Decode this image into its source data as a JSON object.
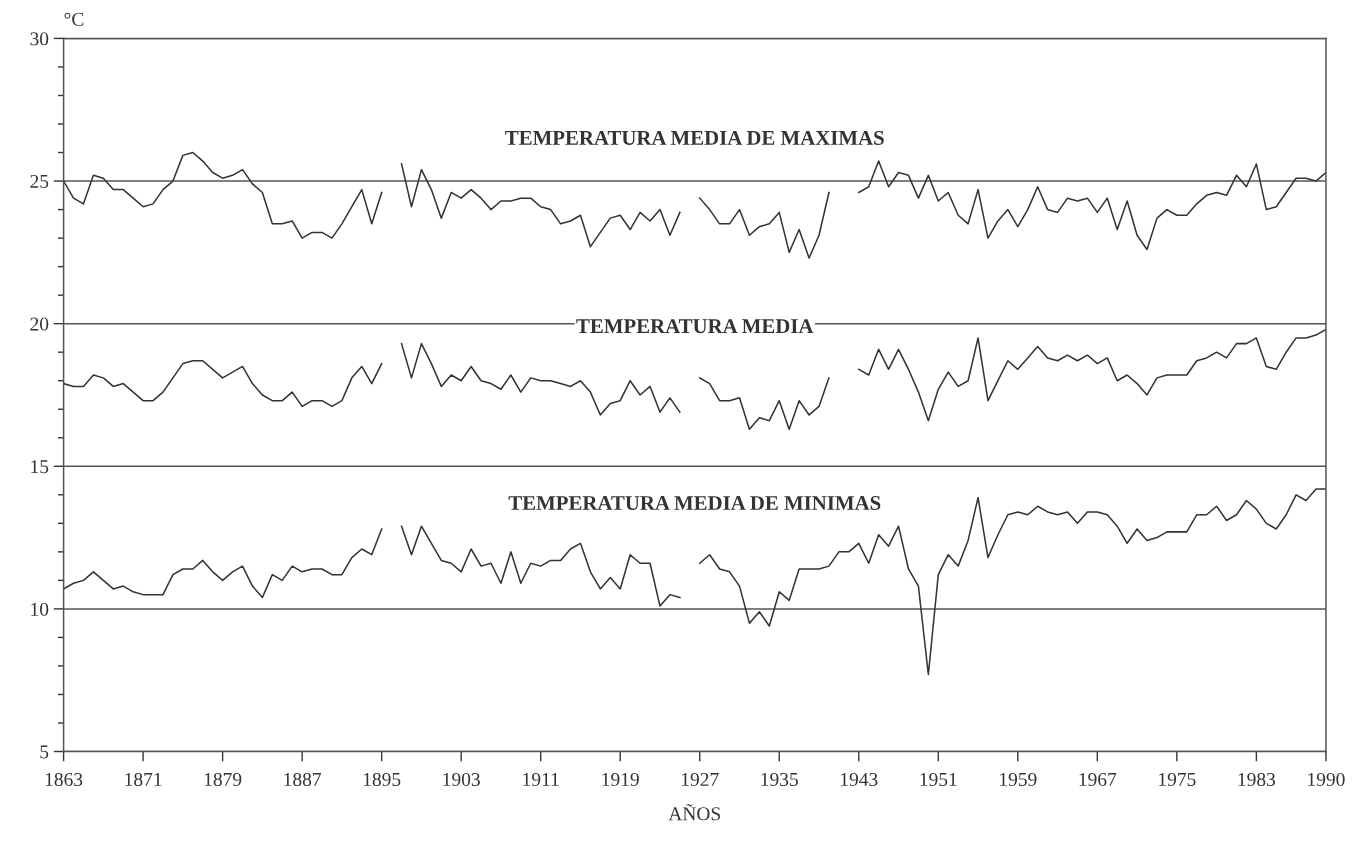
{
  "chart_data": {
    "type": "line",
    "ylabel": "°C",
    "xlabel": "AÑOS",
    "x": [
      1863,
      1864,
      1865,
      1866,
      1867,
      1868,
      1869,
      1870,
      1871,
      1872,
      1873,
      1874,
      1875,
      1876,
      1877,
      1878,
      1879,
      1880,
      1881,
      1882,
      1883,
      1884,
      1885,
      1886,
      1887,
      1888,
      1889,
      1890,
      1891,
      1892,
      1893,
      1894,
      1895,
      1896,
      1897,
      1898,
      1899,
      1900,
      1901,
      1902,
      1903,
      1904,
      1905,
      1906,
      1907,
      1908,
      1909,
      1910,
      1911,
      1912,
      1913,
      1914,
      1915,
      1916,
      1917,
      1918,
      1919,
      1920,
      1921,
      1922,
      1923,
      1924,
      1925,
      1926,
      1927,
      1928,
      1929,
      1930,
      1931,
      1932,
      1933,
      1934,
      1935,
      1936,
      1937,
      1938,
      1939,
      1940,
      1941,
      1942,
      1943,
      1944,
      1945,
      1946,
      1947,
      1948,
      1949,
      1950,
      1951,
      1952,
      1953,
      1954,
      1955,
      1956,
      1957,
      1958,
      1959,
      1960,
      1961,
      1962,
      1963,
      1964,
      1965,
      1966,
      1967,
      1968,
      1969,
      1970,
      1971,
      1972,
      1973,
      1974,
      1975,
      1976,
      1977,
      1978,
      1979,
      1980,
      1981,
      1982,
      1983,
      1984,
      1985,
      1986,
      1987,
      1988,
      1989,
      1990
    ],
    "series": [
      {
        "name": "TEMPERATURA MEDIA DE MAXIMAS",
        "color": "#333333",
        "values": [
          25.0,
          24.4,
          24.2,
          25.2,
          25.1,
          24.7,
          24.7,
          24.4,
          24.1,
          24.2,
          24.7,
          25.0,
          25.9,
          26.0,
          25.7,
          25.3,
          25.1,
          25.2,
          25.4,
          24.9,
          24.6,
          23.5,
          23.5,
          23.6,
          23.0,
          23.2,
          23.2,
          23.0,
          23.5,
          24.1,
          24.7,
          23.5,
          24.6,
          null,
          25.6,
          24.1,
          25.4,
          24.7,
          23.7,
          24.6,
          24.4,
          24.7,
          24.4,
          24.0,
          24.3,
          24.3,
          24.4,
          24.4,
          24.1,
          24.0,
          23.5,
          23.6,
          23.8,
          22.7,
          23.2,
          23.7,
          23.8,
          23.3,
          23.9,
          23.6,
          24.0,
          23.1,
          23.9,
          null,
          24.4,
          24.0,
          23.5,
          23.5,
          24.0,
          23.1,
          23.4,
          23.5,
          23.9,
          22.5,
          23.3,
          22.3,
          23.1,
          24.6,
          null,
          null,
          24.6,
          24.8,
          25.7,
          24.8,
          25.3,
          25.2,
          24.4,
          25.2,
          24.3,
          24.6,
          23.8,
          23.5,
          24.7,
          23.0,
          23.6,
          24.0,
          23.4,
          24.0,
          24.8,
          24.0,
          23.9,
          24.4,
          24.3,
          24.4,
          23.9,
          24.4,
          23.3,
          24.3,
          23.1,
          22.6,
          23.7,
          24.0,
          23.8,
          23.8,
          24.2,
          24.5,
          24.6,
          24.5,
          25.2,
          24.8,
          25.6,
          24.0,
          24.1,
          24.6,
          25.1,
          25.1,
          25.0,
          25.3
        ]
      },
      {
        "name": "TEMPERATURA MEDIA",
        "color": "#333333",
        "values": [
          17.9,
          17.8,
          17.8,
          18.2,
          18.1,
          17.8,
          17.9,
          17.6,
          17.3,
          17.3,
          17.6,
          18.1,
          18.6,
          18.7,
          18.7,
          18.4,
          18.1,
          18.3,
          18.5,
          17.9,
          17.5,
          17.3,
          17.3,
          17.6,
          17.1,
          17.3,
          17.3,
          17.1,
          17.3,
          18.1,
          18.5,
          17.9,
          18.6,
          null,
          19.3,
          18.1,
          19.3,
          18.6,
          17.8,
          18.2,
          18.0,
          18.5,
          18.0,
          17.9,
          17.7,
          18.2,
          17.6,
          18.1,
          18.0,
          18.0,
          17.9,
          17.8,
          18.0,
          17.6,
          16.8,
          17.2,
          17.3,
          18.0,
          17.5,
          17.8,
          16.9,
          17.4,
          16.9,
          null,
          18.1,
          17.9,
          17.3,
          17.3,
          17.4,
          16.3,
          16.7,
          16.6,
          17.3,
          16.3,
          17.3,
          16.8,
          17.1,
          18.1,
          null,
          null,
          18.4,
          18.2,
          19.1,
          18.4,
          19.1,
          18.4,
          17.6,
          16.6,
          17.7,
          18.3,
          17.8,
          18.0,
          19.5,
          17.3,
          18.0,
          18.7,
          18.4,
          18.8,
          19.2,
          18.8,
          18.7,
          18.9,
          18.7,
          18.9,
          18.6,
          18.8,
          18.0,
          18.2,
          17.9,
          17.5,
          18.1,
          18.2,
          18.2,
          18.2,
          18.7,
          18.8,
          19.0,
          18.8,
          19.3,
          19.3,
          19.5,
          18.5,
          18.4,
          19.0,
          19.5,
          19.5,
          19.6,
          19.8
        ]
      },
      {
        "name": "TEMPERATURA MEDIA DE MINIMAS",
        "color": "#333333",
        "values": [
          10.7,
          10.9,
          11.0,
          11.3,
          11.0,
          10.7,
          10.8,
          10.6,
          10.5,
          10.5,
          10.5,
          11.2,
          11.4,
          11.4,
          11.7,
          11.3,
          11.0,
          11.3,
          11.5,
          10.8,
          10.4,
          11.2,
          11.0,
          11.5,
          11.3,
          11.4,
          11.4,
          11.2,
          11.2,
          11.8,
          12.1,
          11.9,
          12.8,
          null,
          12.9,
          11.9,
          12.9,
          12.3,
          11.7,
          11.6,
          11.3,
          12.1,
          11.5,
          11.6,
          10.9,
          12.0,
          10.9,
          11.6,
          11.5,
          11.7,
          11.7,
          12.1,
          12.3,
          11.3,
          10.7,
          11.1,
          10.7,
          11.9,
          11.6,
          11.6,
          10.1,
          10.5,
          10.4,
          null,
          11.6,
          11.9,
          11.4,
          11.3,
          10.8,
          9.5,
          9.9,
          9.4,
          10.6,
          10.3,
          11.4,
          11.4,
          11.4,
          11.5,
          12.0,
          12.0,
          12.3,
          11.6,
          12.6,
          12.2,
          12.9,
          11.4,
          10.8,
          7.7,
          11.2,
          11.9,
          11.5,
          12.4,
          13.9,
          11.8,
          12.6,
          13.3,
          13.4,
          13.3,
          13.6,
          13.4,
          13.3,
          13.4,
          13.0,
          13.4,
          13.4,
          13.3,
          12.9,
          12.3,
          12.8,
          12.4,
          12.5,
          12.7,
          12.7,
          12.7,
          13.3,
          13.3,
          13.6,
          13.1,
          13.3,
          13.8,
          13.5,
          13.0,
          12.8,
          13.3,
          14.0,
          13.8,
          14.2,
          14.2
        ]
      }
    ],
    "xlim": [
      1863,
      1990
    ],
    "xticks": [
      1863,
      1871,
      1879,
      1887,
      1895,
      1903,
      1911,
      1919,
      1927,
      1935,
      1943,
      1951,
      1959,
      1967,
      1975,
      1983,
      1990
    ],
    "ylim": [
      5,
      30
    ],
    "yticks": [
      5,
      10,
      15,
      20,
      25,
      30
    ],
    "grid": "y",
    "legend": false,
    "marker": "none",
    "line_style": "solid"
  }
}
